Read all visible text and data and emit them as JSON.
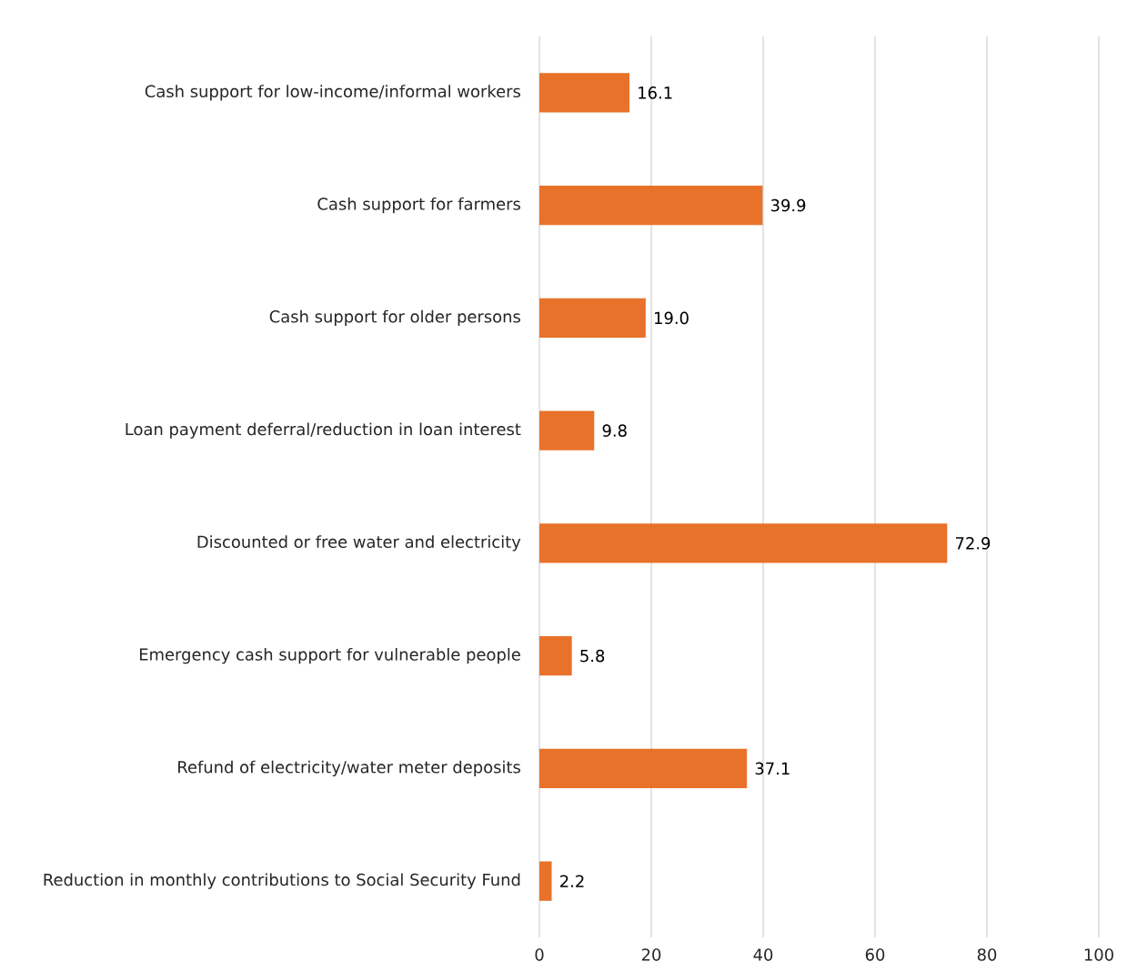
{
  "chart_data": {
    "type": "bar",
    "orientation": "horizontal",
    "categories": [
      "Cash support for low-income/informal workers",
      "Cash support for farmers",
      "Cash support for older persons",
      "Loan payment deferral/reduction in loan interest",
      "Discounted or free water and electricity",
      "Emergency cash support for vulnerable people",
      "Refund of electricity/water meter deposits",
      "Reduction in monthly contributions to Social Security Fund"
    ],
    "values": [
      16.1,
      39.9,
      19.0,
      9.8,
      72.9,
      5.8,
      37.1,
      2.2
    ],
    "color": "#e8722a",
    "xlim": [
      0,
      100
    ],
    "xticks": [
      0,
      20,
      40,
      60,
      80,
      100
    ],
    "value_labels": [
      "16.1",
      "39.9",
      "19.0",
      "9.8",
      "72.9",
      "5.8",
      "37.1",
      "2.2"
    ],
    "grid": "x"
  }
}
